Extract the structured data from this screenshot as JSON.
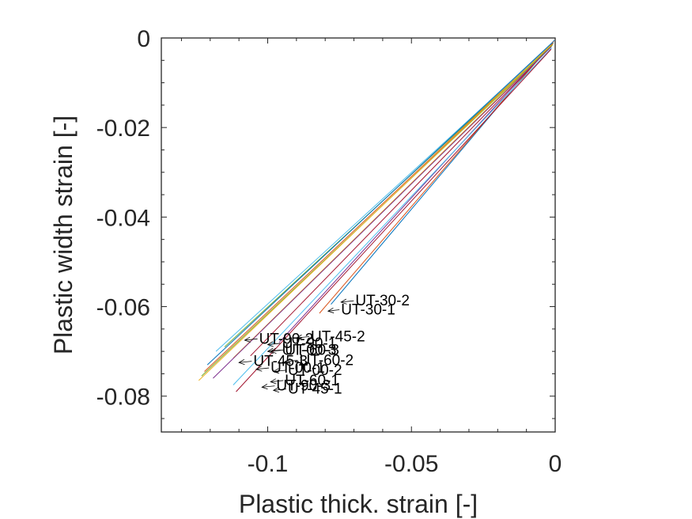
{
  "chart_data": {
    "type": "line",
    "title": "",
    "xlabel": "Plastic thick. strain  [-]",
    "ylabel": "Plastic width strain [-]",
    "xlim": [
      -0.137,
      0.0
    ],
    "ylim": [
      -0.088,
      0.0
    ],
    "xticks": [
      -0.1,
      -0.05,
      0
    ],
    "xtick_labels": [
      "-0.1",
      "-0.05",
      "0"
    ],
    "yticks": [
      0,
      -0.02,
      -0.04,
      -0.06,
      -0.08
    ],
    "ytick_labels": [
      "0",
      "-0.02",
      "-0.04",
      "-0.06",
      "-0.08"
    ],
    "grid": false,
    "legend": "none",
    "series": [
      {
        "name": "UT-30-2",
        "color": "#0072bd",
        "x": [
          -0.0003,
          -0.078
        ],
        "y": [
          -0.0005,
          -0.0595
        ]
      },
      {
        "name": "UT-30-1",
        "color": "#d95319",
        "x": [
          -0.0005,
          -0.082
        ],
        "y": [
          -0.0008,
          -0.0615
        ]
      },
      {
        "name": "UT-90-2",
        "color": "#77ac30",
        "x": [
          -0.0006,
          -0.115
        ],
        "y": [
          -0.0012,
          -0.069
        ]
      },
      {
        "name": "UT-45-2",
        "color": "#7e2f8e",
        "x": [
          -0.0008,
          -0.096
        ],
        "y": [
          -0.0012,
          -0.068
        ]
      },
      {
        "name": "UT-90-1",
        "color": "#4dbeee",
        "x": [
          -0.0006,
          -0.118
        ],
        "y": [
          -0.001,
          -0.07
        ]
      },
      {
        "name": "UT-00-3",
        "color": "#a2142f",
        "x": [
          -0.0012,
          -0.106
        ],
        "y": [
          -0.0018,
          -0.071
        ]
      },
      {
        "name": "UT-60-3",
        "color": "#edb120",
        "x": [
          -0.001,
          -0.112
        ],
        "y": [
          -0.0015,
          -0.0715
        ]
      },
      {
        "name": "UT-60-2",
        "color": "#0072bd",
        "x": [
          -0.001,
          -0.121
        ],
        "y": [
          -0.001,
          -0.073
        ]
      },
      {
        "name": "UT-45-3",
        "color": "#d95319",
        "x": [
          -0.0008,
          -0.122
        ],
        "y": [
          -0.0012,
          -0.0745
        ]
      },
      {
        "name": "UT-00-1",
        "color": "#77ac30",
        "x": [
          -0.001,
          -0.123
        ],
        "y": [
          -0.0016,
          -0.0755
        ]
      },
      {
        "name": "UT-00-2",
        "color": "#7e2f8e",
        "x": [
          -0.0014,
          -0.119
        ],
        "y": [
          -0.002,
          -0.076
        ]
      },
      {
        "name": "UT-60-1",
        "color": "#4dbeee",
        "x": [
          -0.0012,
          -0.112
        ],
        "y": [
          -0.0022,
          -0.0775
        ]
      },
      {
        "name": "UT-45-1",
        "color": "#a2142f",
        "x": [
          -0.0014,
          -0.111
        ],
        "y": [
          -0.0025,
          -0.079
        ]
      },
      {
        "name": "UT-90-3",
        "color": "#edb120",
        "x": [
          -0.0015,
          -0.124
        ],
        "y": [
          -0.0016,
          -0.0765
        ]
      }
    ],
    "annotations": [
      {
        "text": "UT-30-2",
        "x": -0.0745,
        "y": -0.059,
        "tx": -0.0695,
        "ty": -0.0587
      },
      {
        "text": "UT-30-1",
        "x": -0.079,
        "y": -0.061,
        "tx": -0.0745,
        "ty": -0.0607
      },
      {
        "text": "UT-90-2",
        "x": -0.108,
        "y": -0.0675,
        "tx": -0.103,
        "ty": -0.0672
      },
      {
        "text": "UT-45-2",
        "x": -0.09,
        "y": -0.067,
        "tx": -0.085,
        "ty": -0.0667
      },
      {
        "text": "UT-90-1",
        "x": -0.1,
        "y": -0.0685,
        "tx": -0.095,
        "ty": -0.0682
      },
      {
        "text": "UT-00-3",
        "x": -0.1,
        "y": -0.07,
        "tx": -0.095,
        "ty": -0.0697
      },
      {
        "text": "UT-60-3",
        "x": -0.099,
        "y": -0.07,
        "tx": -0.094,
        "ty": -0.0697
      },
      {
        "text": "UT-60-2",
        "x": -0.094,
        "y": -0.0723,
        "tx": -0.089,
        "ty": -0.072
      },
      {
        "text": "UT-45-3",
        "x": -0.11,
        "y": -0.0725,
        "tx": -0.105,
        "ty": -0.0722
      },
      {
        "text": "UT-00-1",
        "x": -0.104,
        "y": -0.074,
        "tx": -0.099,
        "ty": -0.0737
      },
      {
        "text": "UT-00-2",
        "x": -0.098,
        "y": -0.0745,
        "tx": -0.093,
        "ty": -0.0742
      },
      {
        "text": "UT-60-1",
        "x": -0.099,
        "y": -0.0768,
        "tx": -0.094,
        "ty": -0.0765
      },
      {
        "text": "UT-45-1",
        "x": -0.098,
        "y": -0.0787,
        "tx": -0.093,
        "ty": -0.0784
      },
      {
        "text": "UT-90-3",
        "x": -0.102,
        "y": -0.078,
        "tx": -0.097,
        "ty": -0.0777
      }
    ]
  }
}
